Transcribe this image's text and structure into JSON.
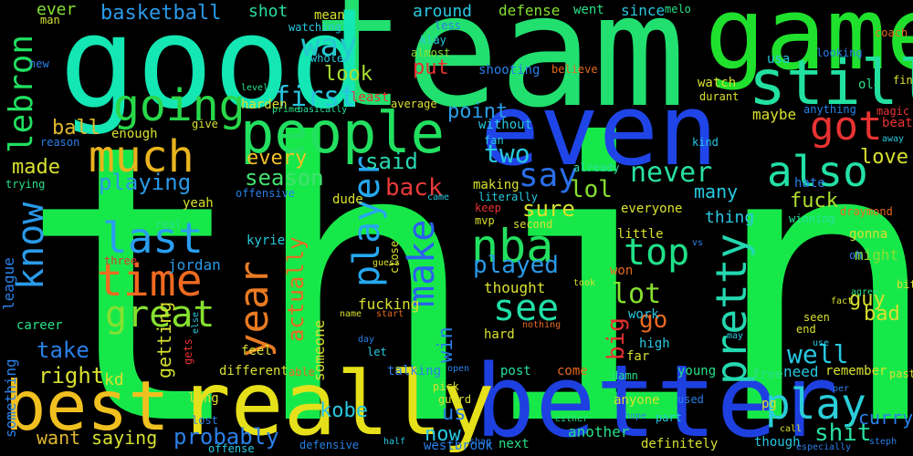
{
  "words": [
    {
      "text": "think",
      "color": "#17e84a"
    },
    {
      "text": "team",
      "color": "#22e070"
    },
    {
      "text": "good",
      "color": "#14e6b4"
    },
    {
      "text": "game",
      "color": "#20e02e"
    },
    {
      "text": "even",
      "color": "#1f45e8"
    },
    {
      "text": "better",
      "color": "#1e40e0"
    },
    {
      "text": "really",
      "color": "#e6e01a"
    },
    {
      "text": "best",
      "color": "#f0c020"
    },
    {
      "text": "people",
      "color": "#22e060"
    },
    {
      "text": "still",
      "color": "#22e0a0"
    },
    {
      "text": "much",
      "color": "#e8b41e"
    },
    {
      "text": "going",
      "color": "#28d84a"
    },
    {
      "text": "time",
      "color": "#f06a20"
    },
    {
      "text": "great",
      "color": "#86e030"
    },
    {
      "text": "last",
      "color": "#2a9ef0"
    },
    {
      "text": "know",
      "color": "#2a9ae8"
    },
    {
      "text": "lebron",
      "color": "#20e060"
    },
    {
      "text": "also",
      "color": "#22e0a6"
    },
    {
      "text": "play",
      "color": "#2acdd8"
    },
    {
      "text": "got",
      "color": "#e83232"
    },
    {
      "text": "nba",
      "color": "#22e060"
    },
    {
      "text": "make",
      "color": "#2a60f0"
    },
    {
      "text": "player",
      "color": "#26a8f0"
    },
    {
      "text": "pretty",
      "color": "#24d8b0"
    },
    {
      "text": "year",
      "color": "#e87a22"
    },
    {
      "text": "see",
      "color": "#20e0a8"
    },
    {
      "text": "top",
      "color": "#20e088"
    },
    {
      "text": "say",
      "color": "#2a6ee8"
    },
    {
      "text": "way",
      "color": "#26c8d0"
    },
    {
      "text": "basketball",
      "color": "#2a9ae8"
    },
    {
      "text": "first",
      "color": "#2ac4e0"
    },
    {
      "text": "look",
      "color": "#a8e030"
    },
    {
      "text": "ball",
      "color": "#e0b830"
    },
    {
      "text": "made",
      "color": "#d8e030"
    },
    {
      "text": "every",
      "color": "#f0c028"
    },
    {
      "text": "season",
      "color": "#44e070"
    },
    {
      "text": "playing",
      "color": "#2a9ae8"
    },
    {
      "text": "back",
      "color": "#e83a3a"
    },
    {
      "text": "two",
      "color": "#28c8e0"
    },
    {
      "text": "said",
      "color": "#28d8b0"
    },
    {
      "text": "lol",
      "color": "#86e030"
    },
    {
      "text": "sure",
      "color": "#d8e030"
    },
    {
      "text": "never",
      "color": "#28e0a0"
    },
    {
      "text": "point",
      "color": "#2a9ee8"
    },
    {
      "text": "put",
      "color": "#e83232"
    },
    {
      "text": "love",
      "color": "#d8e030"
    },
    {
      "text": "bad",
      "color": "#d8e030"
    },
    {
      "text": "guy",
      "color": "#d8e030"
    },
    {
      "text": "many",
      "color": "#28c8e0"
    },
    {
      "text": "fuck",
      "color": "#b0e030"
    },
    {
      "text": "lot",
      "color": "#86e030"
    },
    {
      "text": "go",
      "color": "#e86a22"
    },
    {
      "text": "big",
      "color": "#e83232"
    },
    {
      "text": "played",
      "color": "#2a9ae8"
    },
    {
      "text": "well",
      "color": "#28c8e0"
    },
    {
      "text": "shit",
      "color": "#28e0a0"
    },
    {
      "text": "actually",
      "color": "#e86a22"
    },
    {
      "text": "take",
      "color": "#2a80e8"
    },
    {
      "text": "right",
      "color": "#d8e030"
    },
    {
      "text": "getting",
      "color": "#d8e030"
    },
    {
      "text": "probably",
      "color": "#2a80e8"
    },
    {
      "text": "kobe",
      "color": "#28c8e0"
    },
    {
      "text": "now",
      "color": "#28c8e0"
    },
    {
      "text": "us",
      "color": "#2a80e8"
    },
    {
      "text": "win",
      "color": "#2a80e8"
    },
    {
      "text": "want",
      "color": "#e0b830"
    },
    {
      "text": "saying",
      "color": "#d8e030"
    },
    {
      "text": "fucking",
      "color": "#d8e030"
    },
    {
      "text": "thought",
      "color": "#d8e030"
    },
    {
      "text": "curry",
      "color": "#2a80e8"
    },
    {
      "text": "kd",
      "color": "#d8e030"
    },
    {
      "text": "something",
      "color": "#2a80e8"
    },
    {
      "text": "jordan",
      "color": "#2a9ae8"
    },
    {
      "text": "kyrie",
      "color": "#28c8e0"
    },
    {
      "text": "league",
      "color": "#2a80e8"
    },
    {
      "text": "career",
      "color": "#28e088"
    },
    {
      "text": "ever",
      "color": "#86e030"
    },
    {
      "text": "man",
      "color": "#d8e030"
    },
    {
      "text": "shot",
      "color": "#28e0a0"
    },
    {
      "text": "mean",
      "color": "#d8e030"
    },
    {
      "text": "watching",
      "color": "#28c8e0"
    },
    {
      "text": "around",
      "color": "#28c8e0"
    },
    {
      "text": "less",
      "color": "#2a80e8"
    },
    {
      "text": "klay",
      "color": "#28c8e0"
    },
    {
      "text": "almost",
      "color": "#86e030"
    },
    {
      "text": "defense",
      "color": "#86e030"
    },
    {
      "text": "went",
      "color": "#28e088"
    },
    {
      "text": "since",
      "color": "#28c8e0"
    },
    {
      "text": "melo",
      "color": "#28e088"
    },
    {
      "text": "shooting",
      "color": "#2a80e8"
    },
    {
      "text": "believe",
      "color": "#e86a22"
    },
    {
      "text": "usa",
      "color": "#28c8e0"
    },
    {
      "text": "watch",
      "color": "#d8e030"
    },
    {
      "text": "durant",
      "color": "#d8e030"
    },
    {
      "text": "old",
      "color": "#28e088"
    },
    {
      "text": "maybe",
      "color": "#d8e030"
    },
    {
      "text": "anything",
      "color": "#2a80e8"
    },
    {
      "text": "harden",
      "color": "#d8e030"
    },
    {
      "text": "least",
      "color": "#e83232"
    },
    {
      "text": "average",
      "color": "#d8e030"
    },
    {
      "text": "without",
      "color": "#28c8e0"
    },
    {
      "text": "fan",
      "color": "#28c8e0"
    },
    {
      "text": "enough",
      "color": "#d8e030"
    },
    {
      "text": "give",
      "color": "#d8e030"
    },
    {
      "text": "reason",
      "color": "#2a80e8"
    },
    {
      "text": "trying",
      "color": "#28e088"
    },
    {
      "text": "yeah",
      "color": "#d8e030"
    },
    {
      "text": "real",
      "color": "#28e088"
    },
    {
      "text": "three",
      "color": "#e83232"
    },
    {
      "text": "dude",
      "color": "#d8e030"
    },
    {
      "text": "making",
      "color": "#d8e030"
    },
    {
      "text": "literally",
      "color": "#28c8e0"
    },
    {
      "text": "keep",
      "color": "#e83232"
    },
    {
      "text": "mvp",
      "color": "#d8e030"
    },
    {
      "text": "second",
      "color": "#d8e030"
    },
    {
      "text": "already",
      "color": "#28e0a0"
    },
    {
      "text": "everyone",
      "color": "#d8e030"
    },
    {
      "text": "thing",
      "color": "#28c8e0"
    },
    {
      "text": "little",
      "color": "#d8e030"
    },
    {
      "text": "won",
      "color": "#e86a22"
    },
    {
      "text": "hate",
      "color": "#2a80e8"
    },
    {
      "text": "kind",
      "color": "#28c8e0"
    },
    {
      "text": "gonna",
      "color": "#d8e030"
    },
    {
      "text": "might",
      "color": "#86e030"
    },
    {
      "text": "winning",
      "color": "#28e0a0"
    },
    {
      "text": "draymond",
      "color": "#e86a22"
    },
    {
      "text": "offensive",
      "color": "#2a80e8"
    },
    {
      "text": "looking",
      "color": "#2a80e8"
    },
    {
      "text": "coach",
      "color": "#e86a22"
    },
    {
      "text": "find",
      "color": "#d8e030"
    },
    {
      "text": "magic",
      "color": "#e83232"
    },
    {
      "text": "beat",
      "color": "#e83232"
    },
    {
      "text": "away",
      "color": "#28c8e0"
    },
    {
      "text": "new",
      "color": "#2a80e8"
    },
    {
      "text": "level",
      "color": "#28e088"
    },
    {
      "text": "prime",
      "color": "#28e088"
    },
    {
      "text": "basically",
      "color": "#28e0a0"
    },
    {
      "text": "whole",
      "color": "#28c8e0"
    },
    {
      "text": "came",
      "color": "#28c8e0"
    },
    {
      "text": "guess",
      "color": "#d8e030"
    },
    {
      "text": "close",
      "color": "#d8e030"
    },
    {
      "text": "took",
      "color": "#d8e030"
    },
    {
      "text": "work",
      "color": "#28c8e0"
    },
    {
      "text": "high",
      "color": "#28c8e0"
    },
    {
      "text": "seen",
      "color": "#d8e030"
    },
    {
      "text": "end",
      "color": "#d8e030"
    },
    {
      "text": "use",
      "color": "#28c8e0"
    },
    {
      "text": "oh",
      "color": "#2a80e8"
    },
    {
      "text": "agree",
      "color": "#28e088"
    },
    {
      "text": "fact",
      "color": "#d8e030"
    },
    {
      "text": "bit",
      "color": "#d8e030"
    },
    {
      "text": "remember",
      "color": "#d8e030"
    },
    {
      "text": "past",
      "color": "#d8e030"
    },
    {
      "text": "free",
      "color": "#28e088"
    },
    {
      "text": "need",
      "color": "#28c8e0"
    },
    {
      "text": "pg",
      "color": "#d8e030"
    },
    {
      "text": "young",
      "color": "#28e088"
    },
    {
      "text": "anyone",
      "color": "#d8e030"
    },
    {
      "text": "used",
      "color": "#2a80e8"
    },
    {
      "text": "part",
      "color": "#28c8e0"
    },
    {
      "text": "far",
      "color": "#d8e030"
    },
    {
      "text": "post",
      "color": "#28e0a0"
    },
    {
      "text": "come",
      "color": "#e86a22"
    },
    {
      "text": "damn",
      "color": "#28e088"
    },
    {
      "text": "hope",
      "color": "#2a80e8"
    },
    {
      "text": "either",
      "color": "#28e088"
    },
    {
      "text": "another",
      "color": "#28e088"
    },
    {
      "text": "definitely",
      "color": "#d8e030"
    },
    {
      "text": "though",
      "color": "#28c8e0"
    },
    {
      "text": "call",
      "color": "#d8e030"
    },
    {
      "text": "especially",
      "color": "#2a80e8"
    },
    {
      "text": "steph",
      "color": "#2a80e8"
    },
    {
      "text": "hard",
      "color": "#d8e030"
    },
    {
      "text": "nothing",
      "color": "#e86a22"
    },
    {
      "text": "start",
      "color": "#e86a22"
    },
    {
      "text": "name",
      "color": "#d8e030"
    },
    {
      "text": "day",
      "color": "#2a80e8"
    },
    {
      "text": "let",
      "color": "#28c8e0"
    },
    {
      "text": "someone",
      "color": "#d8e030"
    },
    {
      "text": "able",
      "color": "#e86a22"
    },
    {
      "text": "talking",
      "color": "#2a80e8"
    },
    {
      "text": "open",
      "color": "#2a80e8"
    },
    {
      "text": "pick",
      "color": "#d8e030"
    },
    {
      "text": "guard",
      "color": "#d8e030"
    },
    {
      "text": "westbrook",
      "color": "#2a80e8"
    },
    {
      "text": "shaq",
      "color": "#2a80e8"
    },
    {
      "text": "half",
      "color": "#28c8e0"
    },
    {
      "text": "next",
      "color": "#28e088"
    },
    {
      "text": "defensive",
      "color": "#2a80e8"
    },
    {
      "text": "feel",
      "color": "#d8e030"
    },
    {
      "text": "different",
      "color": "#d8e030"
    },
    {
      "text": "long",
      "color": "#d8e030"
    },
    {
      "text": "lost",
      "color": "#2a80e8"
    },
    {
      "text": "offense",
      "color": "#28c8e0"
    },
    {
      "text": "else",
      "color": "#28c8e0"
    },
    {
      "text": "gets",
      "color": "#e83232"
    },
    {
      "text": "per",
      "color": "#2a80e8"
    },
    {
      "text": "vs",
      "color": "#2a80e8"
    },
    {
      "text": "may",
      "color": "#28c8e0"
    }
  ]
}
